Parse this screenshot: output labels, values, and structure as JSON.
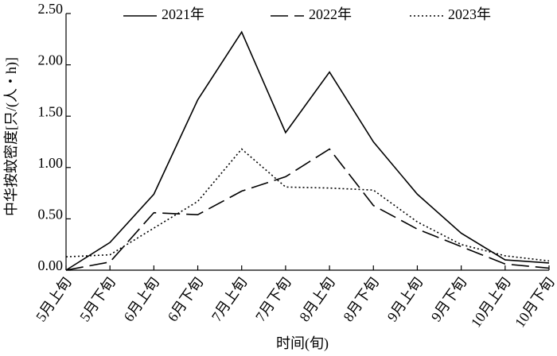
{
  "chart_data": {
    "type": "line",
    "x_label": "时间(旬)",
    "y_label": "中华按蚊密度[只/(人・h)]",
    "categories": [
      "5月上旬",
      "5月下旬",
      "6月上旬",
      "6月下旬",
      "7月上旬",
      "7月下旬",
      "8月上旬",
      "8月下旬",
      "9月上旬",
      "9月下旬",
      "10月上旬",
      "10月下旬"
    ],
    "series": [
      {
        "name": "2021年",
        "color": "#000000",
        "line_style": "solid",
        "values": [
          0.0,
          0.27,
          0.74,
          1.66,
          2.32,
          1.34,
          1.93,
          1.25,
          0.74,
          0.36,
          0.1,
          0.07
        ]
      },
      {
        "name": "2022年",
        "color": "#000000",
        "line_style": "dash",
        "values": [
          0.0,
          0.08,
          0.56,
          0.54,
          0.77,
          0.91,
          1.18,
          0.63,
          0.4,
          0.23,
          0.06,
          0.02
        ]
      },
      {
        "name": "2023年",
        "color": "#000000",
        "line_style": "dot",
        "values": [
          0.13,
          0.15,
          0.41,
          0.67,
          1.18,
          0.81,
          0.8,
          0.78,
          0.47,
          0.25,
          0.14,
          0.09
        ]
      }
    ],
    "ylim": [
      0,
      2.5
    ],
    "yticks": [
      {
        "value": 0,
        "label": "0.00"
      },
      {
        "value": 0.5,
        "label": "0.50"
      },
      {
        "value": 1,
        "label": "1.00"
      },
      {
        "value": 1.5,
        "label": "1.50"
      },
      {
        "value": 2,
        "label": "2.00"
      },
      {
        "value": 2.5,
        "label": "2.50"
      }
    ],
    "legend": "top"
  }
}
